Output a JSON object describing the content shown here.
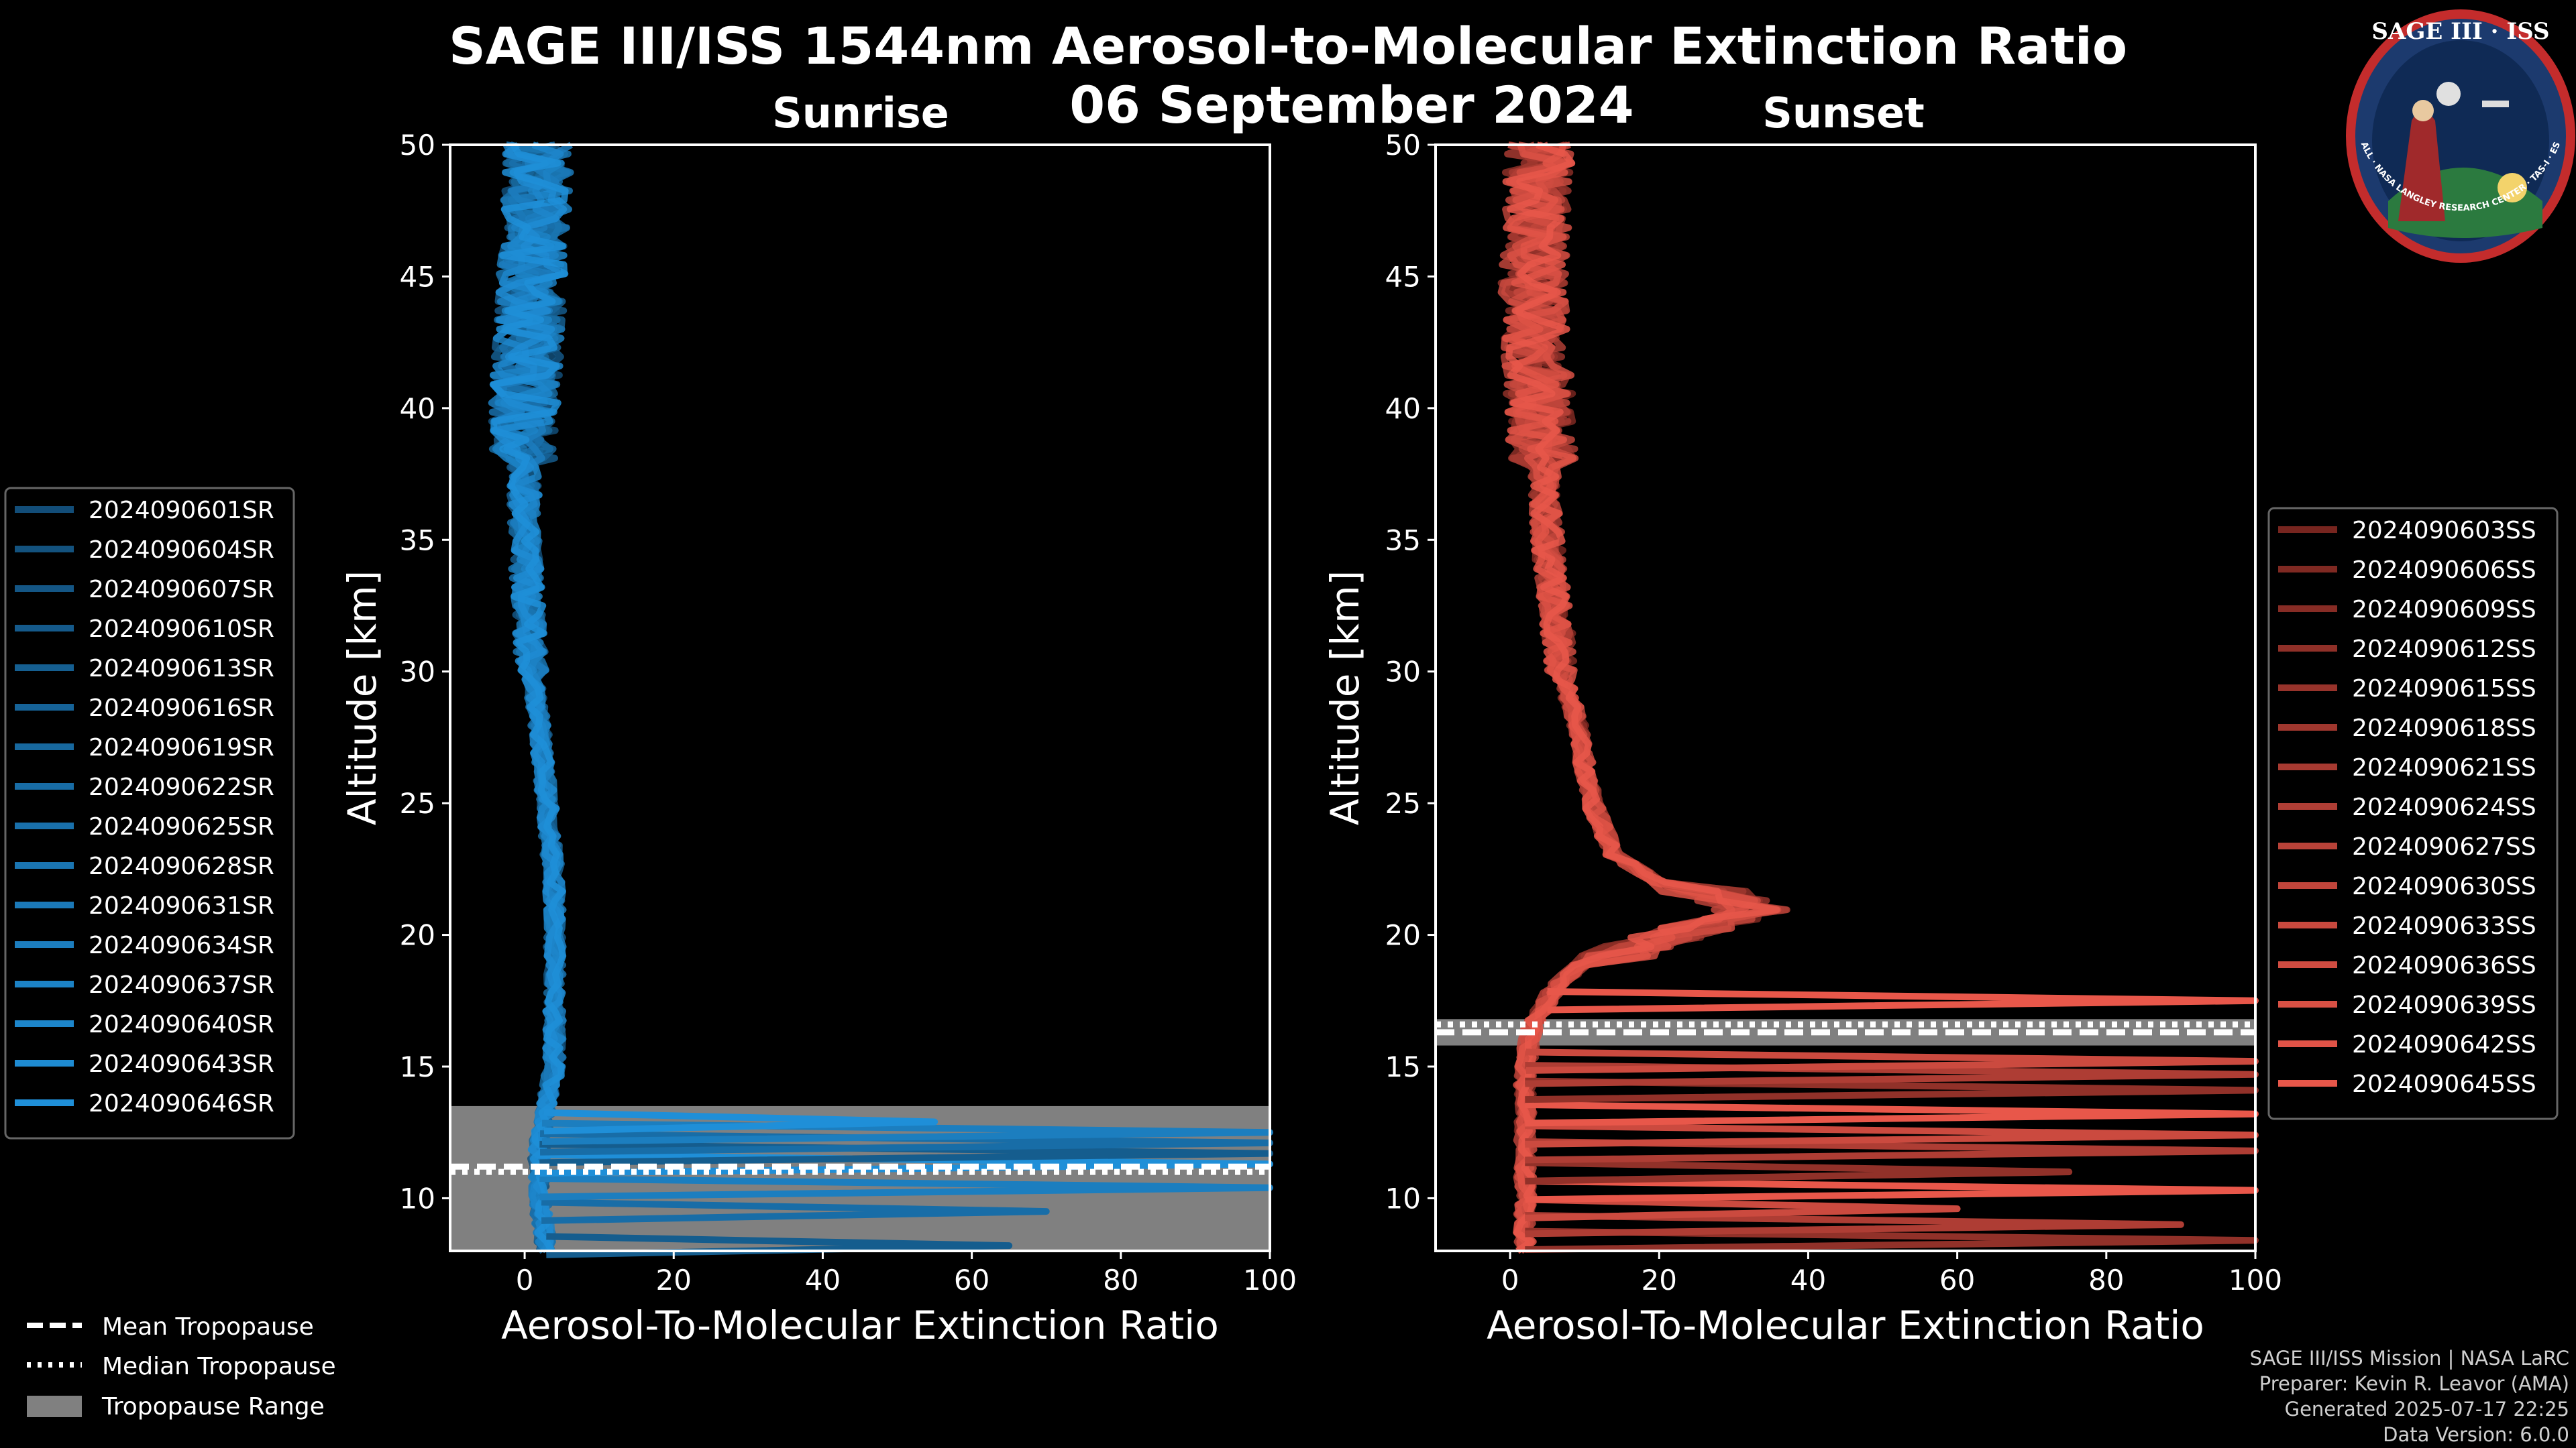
{
  "title": "SAGE III/ISS 1544nm Aerosol-to-Molecular Extinction Ratio",
  "date": "06 September 2024",
  "logo": {
    "text": "SAGE III · ISS",
    "ring_text": "BALL · NASA LANGLEY RESEARCH CENTER · TAS-I · ESA"
  },
  "footer": [
    "SAGE III/ISS Mission | NASA LaRC",
    "Preparer: Kevin R. Leavor (AMA)",
    "Generated 2025-07-17 22:25",
    "Data Version: 6.0.0"
  ],
  "tropopause_legend": [
    "Mean Tropopause",
    "Median Tropopause",
    "Tropopause Range"
  ],
  "colors": {
    "sunrise": "#1f8fd8",
    "sunset": "#e8574a",
    "range": "#808080"
  },
  "chart_data": [
    {
      "type": "line",
      "subtitle": "Sunrise",
      "xlabel": "Aerosol-To-Molecular Extinction Ratio",
      "ylabel": "Altitude [km]",
      "xlim": [
        -10,
        100
      ],
      "ylim": [
        8,
        50
      ],
      "xticks": [
        0,
        20,
        40,
        60,
        80,
        100
      ],
      "yticks": [
        10,
        15,
        20,
        25,
        30,
        35,
        40,
        45,
        50
      ],
      "tropopause": {
        "mean": 11.2,
        "median": 11.0,
        "range": [
          8,
          13.5
        ]
      },
      "series_names": [
        "2024090601SR",
        "2024090604SR",
        "2024090607SR",
        "2024090610SR",
        "2024090613SR",
        "2024090616SR",
        "2024090619SR",
        "2024090622SR",
        "2024090625SR",
        "2024090628SR",
        "2024090631SR",
        "2024090634SR",
        "2024090637SR",
        "2024090640SR",
        "2024090643SR",
        "2024090646SR"
      ],
      "typical_profile": {
        "altitude": [
          8,
          10,
          12,
          13.5,
          15,
          18,
          20,
          22,
          25,
          28,
          30,
          35,
          40,
          45,
          50
        ],
        "ratio": [
          3,
          2,
          2,
          3,
          4,
          4,
          4,
          4,
          3,
          2,
          1,
          0,
          0,
          1,
          2
        ]
      },
      "spikes": [
        {
          "alt": 8.2,
          "val": 65
        },
        {
          "alt": 9.5,
          "val": 70
        },
        {
          "alt": 10.4,
          "val": 100
        },
        {
          "alt": 11.3,
          "val": 100
        },
        {
          "alt": 11.7,
          "val": 100
        },
        {
          "alt": 12.1,
          "val": 100
        },
        {
          "alt": 12.5,
          "val": 100
        },
        {
          "alt": 12.9,
          "val": 55
        }
      ]
    },
    {
      "type": "line",
      "subtitle": "Sunset",
      "xlabel": "Aerosol-To-Molecular Extinction Ratio",
      "ylabel": "Altitude [km]",
      "xlim": [
        -10,
        100
      ],
      "ylim": [
        8,
        50
      ],
      "xticks": [
        0,
        20,
        40,
        60,
        80,
        100
      ],
      "yticks": [
        10,
        15,
        20,
        25,
        30,
        35,
        40,
        45,
        50
      ],
      "tropopause": {
        "mean": 16.3,
        "median": 16.6,
        "range": [
          15.8,
          16.8
        ]
      },
      "series_names": [
        "2024090603SS",
        "2024090606SS",
        "2024090609SS",
        "2024090612SS",
        "2024090615SS",
        "2024090618SS",
        "2024090621SS",
        "2024090624SS",
        "2024090627SS",
        "2024090630SS",
        "2024090633SS",
        "2024090636SS",
        "2024090639SS",
        "2024090642SS",
        "2024090645SS"
      ],
      "typical_profile": {
        "altitude": [
          8,
          10,
          12,
          15,
          16.5,
          18,
          19,
          20,
          21,
          22,
          23,
          25,
          28,
          30,
          35,
          40,
          45,
          50
        ],
        "ratio": [
          2,
          2,
          2,
          2,
          3,
          6,
          10,
          20,
          32,
          20,
          14,
          11,
          9,
          7,
          5,
          4,
          3,
          4
        ]
      },
      "spikes": [
        {
          "alt": 8.4,
          "val": 100
        },
        {
          "alt": 9.0,
          "val": 90
        },
        {
          "alt": 9.6,
          "val": 60
        },
        {
          "alt": 10.3,
          "val": 100
        },
        {
          "alt": 11.0,
          "val": 75
        },
        {
          "alt": 11.8,
          "val": 100
        },
        {
          "alt": 12.4,
          "val": 100
        },
        {
          "alt": 13.2,
          "val": 100
        },
        {
          "alt": 14.1,
          "val": 100
        },
        {
          "alt": 14.7,
          "val": 100
        },
        {
          "alt": 15.2,
          "val": 100
        },
        {
          "alt": 17.5,
          "val": 100
        }
      ]
    }
  ]
}
